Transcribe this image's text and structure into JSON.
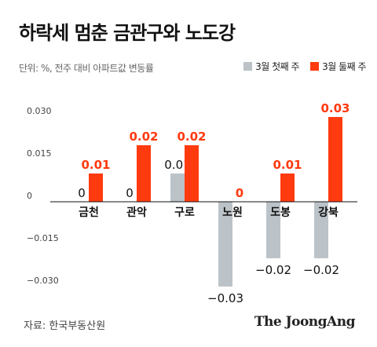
{
  "header": {
    "title": "하락세 멈춘 금관구와 노도강",
    "unit": "단위: %, 전주 대비 아파트값 변동률"
  },
  "footer": {
    "source": "자료: 한국부동산원",
    "brand": "The JoongAng"
  },
  "colors": {
    "week1": "#bcc3c8",
    "week2": "#ff3a0f",
    "axis": "#111111",
    "tick": "#444444",
    "label_week1": "#111111",
    "label_week2": "#ff3a0f"
  },
  "chart_data": {
    "type": "bar",
    "categories": [
      "금천",
      "관악",
      "구로",
      "노원",
      "도봉",
      "강북"
    ],
    "series": [
      {
        "name": "3월 첫째 주",
        "values": [
          0,
          0,
          0.01,
          -0.03,
          -0.02,
          -0.02
        ],
        "labels": [
          "0",
          "0",
          "0.01",
          "−0.03",
          "−0.02",
          "−0.02"
        ]
      },
      {
        "name": "3월 둘째 주",
        "values": [
          0.01,
          0.02,
          0.02,
          0,
          0.01,
          0.03
        ],
        "labels": [
          "0.01",
          "0.02",
          "0.02",
          "0",
          "0.01",
          "0.03"
        ]
      }
    ],
    "yticks": [
      0.03,
      0.015,
      0,
      -0.015,
      -0.03
    ],
    "ytick_labels": [
      "0.030",
      "0.015",
      "0",
      "−0.015",
      "−0.030"
    ],
    "ylim": [
      -0.03,
      0.03
    ],
    "legend_position": "top-right",
    "grid": false
  }
}
